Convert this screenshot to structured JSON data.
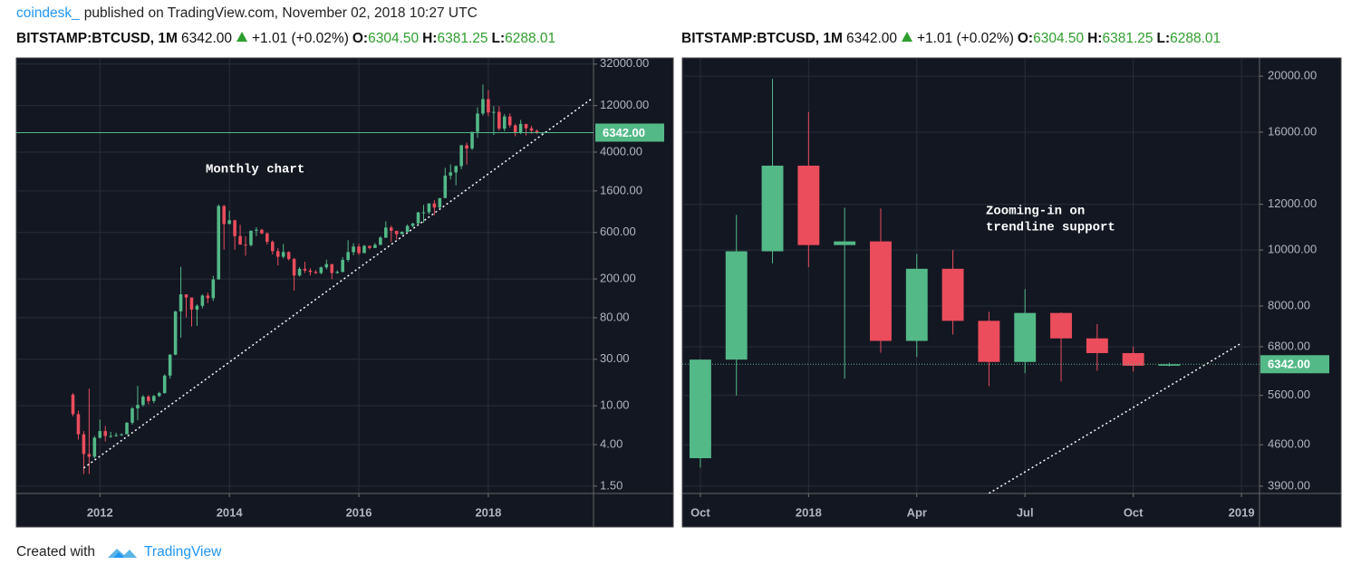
{
  "header": {
    "author": "coindesk_",
    "published": "published on TradingView.com, November 02, 2018 10:27 UTC"
  },
  "footer": {
    "created": "Created with",
    "brand": "TradingView"
  },
  "chart_data": [
    {
      "type": "candlestick",
      "log_scale": true,
      "grid": true,
      "up_color": "#53b987",
      "down_color": "#eb4d5c",
      "legend": {
        "symbol": "BITSTAMP:BTCUSD, 1M",
        "price": "6342.00",
        "change": "+1.01 (+0.02%)",
        "o_label": "O:",
        "o": "6304.50",
        "h_label": "H:",
        "h": "6381.25",
        "l_label": "L:",
        "l": "6288.01"
      },
      "annotation": [
        "Monthly chart"
      ],
      "x": [
        "2011-08",
        "2011-09",
        "2011-10",
        "2011-11",
        "2011-12",
        "2012-01",
        "2012-02",
        "2012-03",
        "2012-04",
        "2012-05",
        "2012-06",
        "2012-07",
        "2012-08",
        "2012-09",
        "2012-10",
        "2012-11",
        "2012-12",
        "2013-01",
        "2013-02",
        "2013-03",
        "2013-04",
        "2013-05",
        "2013-06",
        "2013-07",
        "2013-08",
        "2013-09",
        "2013-10",
        "2013-11",
        "2013-12",
        "2014-01",
        "2014-02",
        "2014-03",
        "2014-04",
        "2014-05",
        "2014-06",
        "2014-07",
        "2014-08",
        "2014-09",
        "2014-10",
        "2014-11",
        "2014-12",
        "2015-01",
        "2015-02",
        "2015-03",
        "2015-04",
        "2015-05",
        "2015-06",
        "2015-07",
        "2015-08",
        "2015-09",
        "2015-10",
        "2015-11",
        "2015-12",
        "2016-01",
        "2016-02",
        "2016-03",
        "2016-04",
        "2016-05",
        "2016-06",
        "2016-07",
        "2016-08",
        "2016-09",
        "2016-10",
        "2016-11",
        "2016-12",
        "2017-01",
        "2017-02",
        "2017-03",
        "2017-04",
        "2017-05",
        "2017-06",
        "2017-07",
        "2017-08",
        "2017-09",
        "2017-10",
        "2017-11",
        "2017-12",
        "2018-01",
        "2018-02",
        "2018-03",
        "2018-04",
        "2018-05",
        "2018-06",
        "2018-07",
        "2018-08",
        "2018-09",
        "2018-10",
        "2018-11"
      ],
      "open": [
        13,
        8.2,
        5.1,
        3.2,
        3.0,
        4.7,
        5.5,
        4.9,
        4.9,
        5.0,
        5.1,
        6.7,
        9.4,
        10.2,
        12.4,
        11.2,
        12.6,
        13.5,
        20.4,
        33.4,
        93,
        139,
        129,
        97,
        106,
        135,
        127,
        198,
        1120,
        732,
        800,
        550,
        450,
        445,
        625,
        640,
        586,
        480,
        386,
        338,
        378,
        320,
        217,
        254,
        244,
        236,
        230,
        263,
        284,
        230,
        236,
        314,
        377,
        430,
        368,
        437,
        416,
        448,
        531,
        673,
        624,
        575,
        609,
        700,
        742,
        963,
        965,
        1190,
        1080,
        1350,
        2300,
        2480,
        2875,
        4700,
        4360,
        6460,
        9950,
        14000,
        10200,
        10350,
        6960,
        9280,
        7540,
        6400,
        7780,
        7030,
        6630,
        6304.5
      ],
      "high": [
        13.5,
        8.9,
        5.5,
        15,
        4.9,
        7.2,
        6.2,
        5.4,
        5.3,
        5.2,
        6.8,
        9.7,
        16,
        12.9,
        12.9,
        12.9,
        13.9,
        21,
        34,
        94,
        266,
        139,
        129,
        110,
        139,
        145,
        215,
        1163,
        1150,
        999,
        810,
        720,
        547,
        629,
        680,
        652,
        600,
        500,
        415,
        457,
        384,
        330,
        265,
        300,
        258,
        247,
        268,
        316,
        284,
        245,
        335,
        500,
        465,
        460,
        446,
        440,
        467,
        550,
        780,
        704,
        620,
        615,
        725,
        753,
        975,
        1150,
        1200,
        1290,
        1350,
        2760,
        2990,
        2920,
        4770,
        5000,
        6470,
        11500,
        19780,
        17340,
        11840,
        11800,
        9840,
        10000,
        7820,
        8560,
        7800,
        7440,
        6800,
        6381.25
      ],
      "low": [
        7.8,
        4.5,
        2.0,
        2.0,
        2.9,
        4.6,
        4.3,
        4.7,
        4.8,
        4.9,
        5.1,
        6.4,
        7.1,
        9.8,
        10.4,
        10.6,
        12.3,
        13.3,
        19,
        33,
        50,
        81,
        65,
        66,
        100,
        113,
        119,
        196,
        400,
        730,
        400,
        450,
        346,
        430,
        550,
        575,
        450,
        357,
        275,
        325,
        310,
        152,
        212,
        230,
        218,
        225,
        223,
        251,
        199,
        226,
        234,
        299,
        350,
        352,
        368,
        402,
        415,
        443,
        525,
        480,
        510,
        597,
        610,
        678,
        733,
        752,
        918,
        900,
        1060,
        1357,
        2100,
        1830,
        2670,
        2980,
        4200,
        5600,
        9480,
        9340,
        5990,
        6640,
        6530,
        7140,
        5810,
        6120,
        5920,
        6180,
        6160,
        6288.01
      ],
      "close": [
        8.2,
        5.1,
        3.2,
        3.0,
        4.7,
        5.5,
        4.9,
        4.9,
        5.0,
        5.1,
        6.7,
        9.4,
        10.2,
        12.4,
        11.2,
        12.6,
        13.5,
        20.4,
        33.4,
        93,
        139,
        129,
        97,
        106,
        135,
        127,
        198,
        1120,
        732,
        800,
        550,
        450,
        445,
        625,
        640,
        586,
        480,
        386,
        338,
        378,
        320,
        217,
        254,
        244,
        236,
        230,
        263,
        284,
        230,
        236,
        314,
        377,
        430,
        368,
        437,
        416,
        448,
        531,
        673,
        624,
        575,
        609,
        700,
        742,
        963,
        965,
        1190,
        1080,
        1350,
        2300,
        2480,
        2875,
        4700,
        4360,
        6460,
        9950,
        14000,
        10200,
        10350,
        6960,
        9280,
        7540,
        6400,
        7780,
        7030,
        6630,
        6304.5,
        6342
      ],
      "xlim": [
        "2010-10",
        "2019-08"
      ],
      "xticks": [
        {
          "value": "2012-01",
          "label": "2012"
        },
        {
          "value": "2014-01",
          "label": "2014"
        },
        {
          "value": "2016-01",
          "label": "2016"
        },
        {
          "value": "2018-01",
          "label": "2018"
        }
      ],
      "ylim": [
        1.26,
        37000
      ],
      "yticks": [
        {
          "value": 1.5,
          "label": "1.50"
        },
        {
          "value": 4,
          "label": "4.00"
        },
        {
          "value": 10,
          "label": "10.00"
        },
        {
          "value": 30,
          "label": "30.00"
        },
        {
          "value": 80,
          "label": "80.00"
        },
        {
          "value": 200,
          "label": "200.00"
        },
        {
          "value": 600,
          "label": "600.00"
        },
        {
          "value": 1600,
          "label": "1600.00"
        },
        {
          "value": 4000,
          "label": "4000.00"
        },
        {
          "value": 12000,
          "label": "12000.00"
        },
        {
          "value": 32000,
          "label": "32000.00"
        }
      ],
      "last_price": {
        "value": 6342,
        "label": "6342.00"
      },
      "trendline": {
        "x": [
          "2011-10",
          "2019-08"
        ],
        "values": [
          2.3,
          13900
        ]
      }
    },
    {
      "type": "candlestick",
      "log_scale": true,
      "grid": true,
      "up_color": "#53b987",
      "down_color": "#eb4d5c",
      "legend": {
        "symbol": "BITSTAMP:BTCUSD, 1M",
        "price": "6342.00",
        "change": "+1.01 (+0.02%)",
        "o_label": "O:",
        "o": "6304.50",
        "h_label": "H:",
        "h": "6381.25",
        "l_label": "L:",
        "l": "6288.01"
      },
      "annotation": [
        "Zooming-in on",
        "trendline support"
      ],
      "x": [
        "2017-10",
        "2017-11",
        "2017-12",
        "2018-01",
        "2018-02",
        "2018-03",
        "2018-04",
        "2018-05",
        "2018-06",
        "2018-07",
        "2018-08",
        "2018-09",
        "2018-10",
        "2018-11"
      ],
      "open": [
        4360,
        6460,
        9950,
        14000,
        10200,
        10350,
        6960,
        9280,
        7540,
        6400,
        7780,
        7030,
        6630,
        6304.5
      ],
      "high": [
        6470,
        11500,
        19780,
        17340,
        11840,
        11800,
        9840,
        10000,
        7820,
        8560,
        7800,
        7440,
        6800,
        6381.25
      ],
      "low": [
        4200,
        5600,
        9480,
        9340,
        5990,
        6640,
        6530,
        7140,
        5810,
        6120,
        5920,
        6180,
        6160,
        6288.01
      ],
      "close": [
        6460,
        9950,
        14000,
        10200,
        10350,
        6960,
        9280,
        7540,
        6400,
        7780,
        7030,
        6630,
        6304.5,
        6342
      ],
      "xlim": [
        "2017-10",
        "2019-01"
      ],
      "xticks": [
        {
          "value": "2017-10",
          "label": "Oct"
        },
        {
          "value": "2018-01",
          "label": "2018"
        },
        {
          "value": "2018-04",
          "label": "Apr"
        },
        {
          "value": "2018-07",
          "label": "Jul"
        },
        {
          "value": "2018-10",
          "label": "Oct"
        },
        {
          "value": "2019-01",
          "label": "2019"
        }
      ],
      "ylim": [
        3788,
        21510
      ],
      "yticks": [
        {
          "value": 3900,
          "label": "3900.00"
        },
        {
          "value": 4600,
          "label": "4600.00"
        },
        {
          "value": 5600,
          "label": "5600.00"
        },
        {
          "value": 6800,
          "label": "6800.00"
        },
        {
          "value": 8000,
          "label": "8000.00"
        },
        {
          "value": 10000,
          "label": "10000.00"
        },
        {
          "value": 12000,
          "label": "12000.00"
        },
        {
          "value": 16000,
          "label": "16000.00"
        },
        {
          "value": 20000,
          "label": "20000.00"
        }
      ],
      "last_price": {
        "value": 6342,
        "label": "6342.00"
      },
      "trendline": {
        "x": [
          "2018-06",
          "2019-01"
        ],
        "values": [
          3790,
          6900
        ]
      }
    }
  ]
}
